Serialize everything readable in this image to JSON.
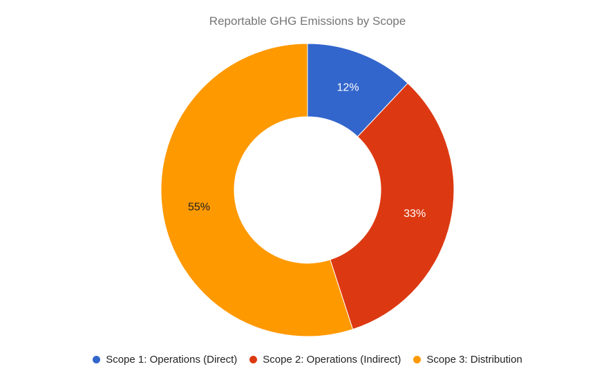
{
  "chart_data": {
    "type": "pie",
    "donut": true,
    "title": "Reportable GHG Emissions by Scope",
    "legend_position": "bottom",
    "slices": [
      {
        "label": "Scope 1: Operations (Direct)",
        "value": 12,
        "percent_label": "12%",
        "color": "#3366cc",
        "label_color": "#ffffff"
      },
      {
        "label": "Scope 2: Operations (Indirect)",
        "value": 33,
        "percent_label": "33%",
        "color": "#dc3912",
        "label_color": "#ffffff"
      },
      {
        "label": "Scope 3: Distribution",
        "value": 55,
        "percent_label": "55%",
        "color": "#ff9900",
        "label_color": "#222222"
      }
    ]
  }
}
